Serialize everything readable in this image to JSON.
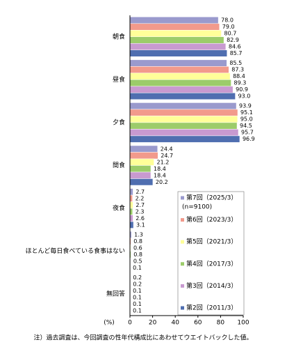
{
  "chart_data": {
    "type": "hbar",
    "categories": [
      "朝食",
      "昼食",
      "夕食",
      "間食",
      "夜食",
      "ほとんど毎日食べている食事はない",
      "無回答"
    ],
    "series": [
      {
        "name": "第7回（2025/3）",
        "color": "#9a9acd",
        "values": [
          78.0,
          85.5,
          93.9,
          24.4,
          2.7,
          1.3,
          0.2
        ],
        "value_labels": [
          "78.0",
          "85.5",
          "93.9",
          "24.4",
          "2.7",
          "1.3",
          "0.2"
        ]
      },
      {
        "name": "第6回（2023/3）",
        "color": "#f29a8c",
        "values": [
          79.0,
          87.3,
          95.1,
          24.7,
          2.2,
          0.8,
          0.2
        ],
        "value_labels": [
          "79.0",
          "87.3",
          "95.1",
          "24.7",
          "2.2",
          "0.8",
          "0.2"
        ]
      },
      {
        "name": "第5回（2021/3）",
        "color": "#ffff99",
        "values": [
          80.7,
          88.4,
          95.0,
          21.2,
          2.7,
          0.6,
          0.1
        ],
        "value_labels": [
          "80.7",
          "88.4",
          "95.0",
          "21.2",
          "2.7",
          "0.6",
          "0.1"
        ]
      },
      {
        "name": "第4回（2017/3）",
        "color": "#9ccc6a",
        "values": [
          82.9,
          89.3,
          94.5,
          18.4,
          2.3,
          0.8,
          0.1
        ],
        "value_labels": [
          "82.9",
          "89.3",
          "94.5",
          "18.4",
          "2.3",
          "0.8",
          "0.1"
        ]
      },
      {
        "name": "第3回（2014/3）",
        "color": "#c89ad0",
        "values": [
          84.6,
          90.9,
          95.7,
          18.4,
          2.6,
          0.5,
          0.1
        ],
        "value_labels": [
          "84.6",
          "90.9",
          "95.7",
          "18.4",
          "2.6",
          "0.5",
          "0.1"
        ]
      },
      {
        "name": "第2回（2011/3）",
        "color": "#4f6eb0",
        "values": [
          85.7,
          93.0,
          96.9,
          20.2,
          3.1,
          0.1,
          0.1
        ],
        "value_labels": [
          "85.7",
          "93.0",
          "96.9",
          "20.2",
          "3.1",
          "0.1",
          "0.1"
        ]
      }
    ],
    "legend_note": "(n=9100)",
    "x_label": "(%)",
    "xlim": [
      0,
      100
    ],
    "xticks": [
      0,
      20,
      40,
      60,
      80,
      100
    ],
    "note": "注）過去調査は、今回調査の性年代構成比にあわせてウエイトバックした値。"
  }
}
